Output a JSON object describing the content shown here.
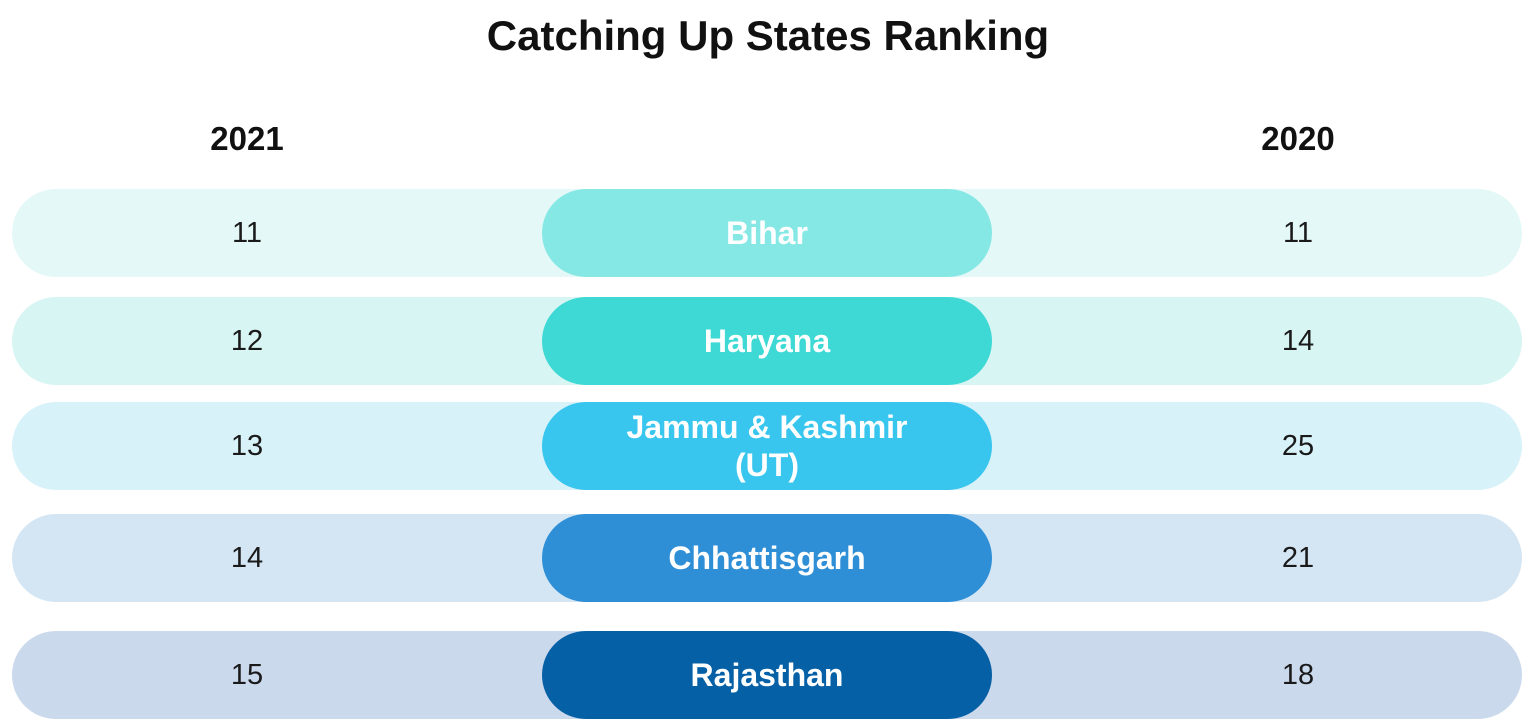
{
  "title": "Catching Up States Ranking",
  "columns": {
    "left": "2021",
    "right": "2020"
  },
  "rows": [
    {
      "state": "Bihar",
      "state_line2": "",
      "rank_2021": "11",
      "rank_2020": "11",
      "row_color": "#e3f8f7",
      "pill_color": "#86e8e5"
    },
    {
      "state": "Haryana",
      "state_line2": "",
      "rank_2021": "12",
      "rank_2020": "14",
      "row_color": "#d6f5f3",
      "pill_color": "#3ed9d5"
    },
    {
      "state": "Jammu & Kashmir",
      "state_line2": "(UT)",
      "rank_2021": "13",
      "rank_2020": "25",
      "row_color": "#d7f2f9",
      "pill_color": "#38c6ee"
    },
    {
      "state": "Chhattisgarh",
      "state_line2": "",
      "rank_2021": "14",
      "rank_2020": "21",
      "row_color": "#d4e6f4",
      "pill_color": "#2f8fd6"
    },
    {
      "state": "Rajasthan",
      "state_line2": "",
      "rank_2021": "15",
      "rank_2020": "18",
      "row_color": "#cbd9ed",
      "pill_color": "#0560a6"
    }
  ]
}
